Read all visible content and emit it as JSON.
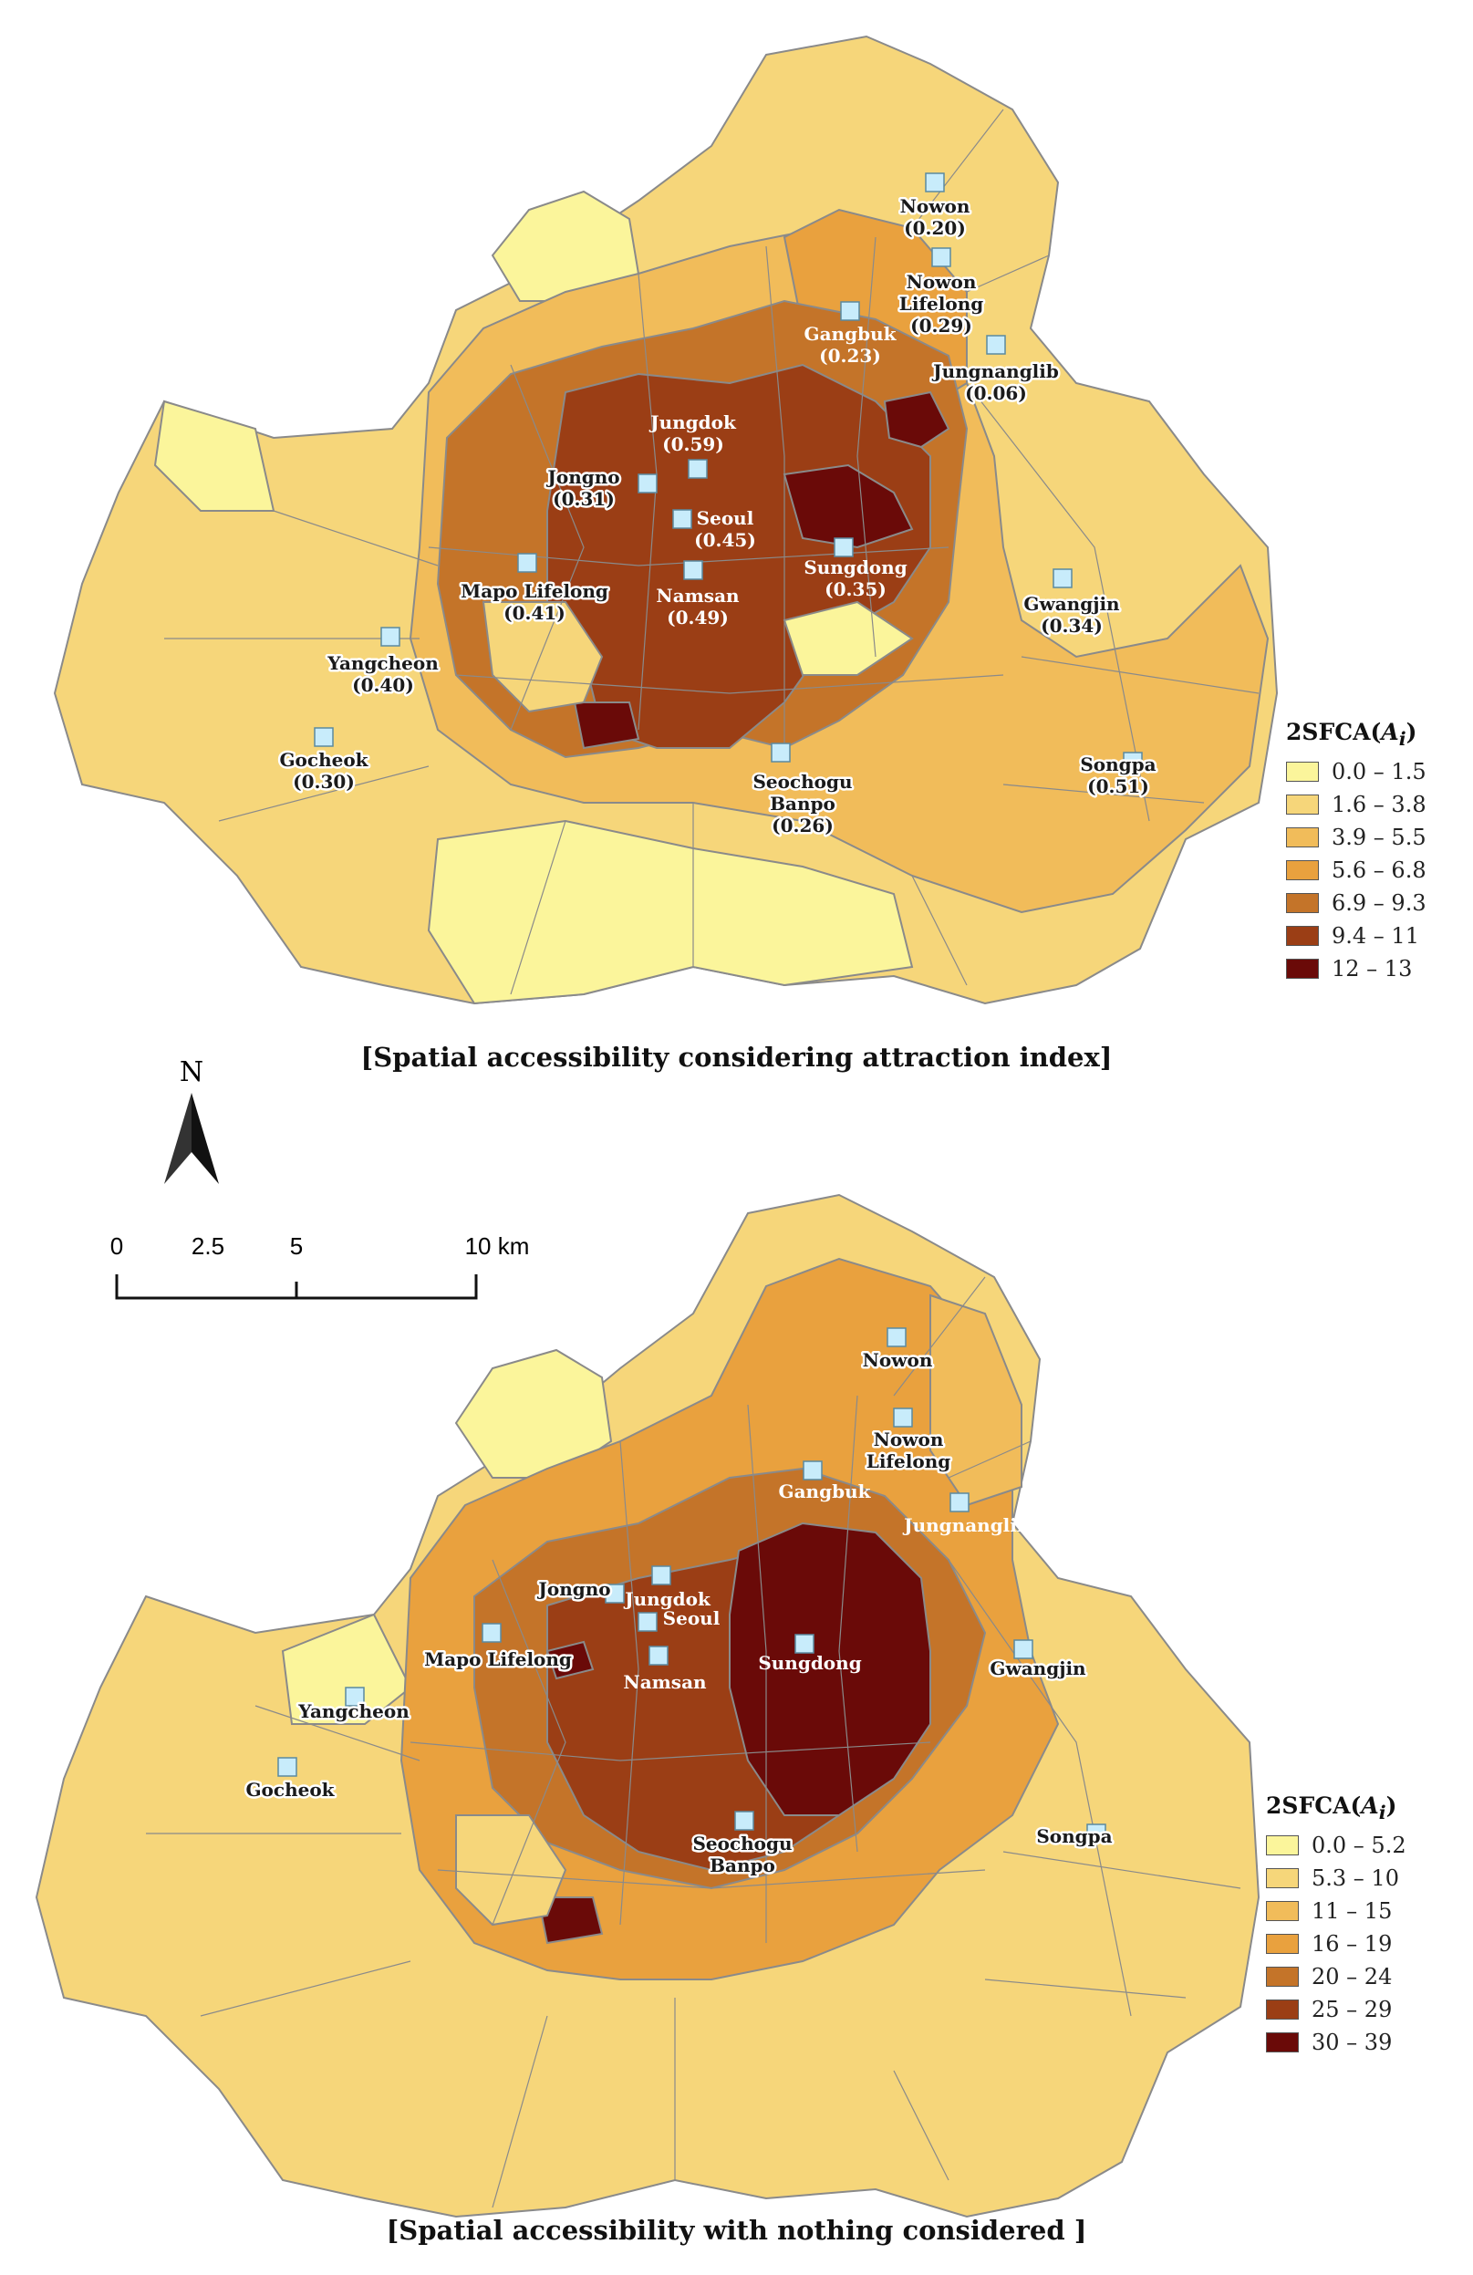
{
  "panel1": {
    "caption": "[Spatial accessibility considering attraction index]",
    "legend": {
      "title_prefix": "2SFCA(",
      "title_var": "A",
      "title_sub": "i",
      "title_suffix": ")",
      "classes": [
        {
          "label": "0.0 – 1.5",
          "color": "#fbf59b"
        },
        {
          "label": "1.6 – 3.8",
          "color": "#f6d67a"
        },
        {
          "label": "3.9 – 5.5",
          "color": "#f1bc5a"
        },
        {
          "label": "5.6 – 6.8",
          "color": "#e9a13e"
        },
        {
          "label": "6.9 – 9.3",
          "color": "#c47429"
        },
        {
          "label": "9.4 – 11",
          "color": "#9b3e15"
        },
        {
          "label": "12 – 13",
          "color": "#6a0a08"
        }
      ]
    },
    "libraries": [
      {
        "name": "Nowon",
        "value": "(0.20)",
        "label_class": "dark"
      },
      {
        "name": "Nowon Lifelong",
        "value": "(0.29)",
        "label_class": "dark"
      },
      {
        "name": "Gangbuk",
        "value": "(0.23)",
        "label_class": "light"
      },
      {
        "name": "Jungnanglib",
        "value": "(0.06)",
        "label_class": "dark"
      },
      {
        "name": "Jungdok",
        "value": "(0.59)",
        "label_class": "light"
      },
      {
        "name": "Jongno",
        "value": "(0.31)",
        "label_class": "dark"
      },
      {
        "name": "Seoul",
        "value": "(0.45)",
        "label_class": "light"
      },
      {
        "name": "Sungdong",
        "value": "(0.35)",
        "label_class": "light"
      },
      {
        "name": "Namsan",
        "value": "(0.49)",
        "label_class": "light"
      },
      {
        "name": "Mapo Lifelong",
        "value": "(0.41)",
        "label_class": "dark"
      },
      {
        "name": "Gwangjin",
        "value": "(0.34)",
        "label_class": "dark"
      },
      {
        "name": "Yangcheon",
        "value": "(0.40)",
        "label_class": "dark"
      },
      {
        "name": "Gocheok",
        "value": "(0.30)",
        "label_class": "dark"
      },
      {
        "name": "Seochogu Banpo",
        "value": "(0.26)",
        "label_class": "dark"
      },
      {
        "name": "Songpa",
        "value": "(0.51)",
        "label_class": "dark"
      }
    ]
  },
  "panel2": {
    "caption": "[Spatial accessibility with nothing considered ]",
    "legend": {
      "title_prefix": "2SFCA(",
      "title_var": "A",
      "title_sub": "i",
      "title_suffix": ")",
      "classes": [
        {
          "label": "0.0 – 5.2",
          "color": "#fbf59b"
        },
        {
          "label": "5.3 – 10",
          "color": "#f6d67a"
        },
        {
          "label": "11 – 15",
          "color": "#f1bc5a"
        },
        {
          "label": "16 – 19",
          "color": "#e9a13e"
        },
        {
          "label": "20 – 24",
          "color": "#c47429"
        },
        {
          "label": "25 – 29",
          "color": "#9b3e15"
        },
        {
          "label": "30 – 39",
          "color": "#6a0a08"
        }
      ]
    },
    "libraries": [
      {
        "name": "Nowon",
        "label_class": "dark"
      },
      {
        "name": "Nowon Lifelong",
        "label_class": "dark"
      },
      {
        "name": "Gangbuk",
        "label_class": "light"
      },
      {
        "name": "Jungnanglib",
        "label_class": "light"
      },
      {
        "name": "Jungdok",
        "label_class": "light"
      },
      {
        "name": "Jongno",
        "label_class": "dark"
      },
      {
        "name": "Seoul",
        "label_class": "light"
      },
      {
        "name": "Sungdong",
        "label_class": "light"
      },
      {
        "name": "Namsan",
        "label_class": "light"
      },
      {
        "name": "Mapo Lifelong",
        "label_class": "dark"
      },
      {
        "name": "Gwangjin",
        "label_class": "dark"
      },
      {
        "name": "Yangcheon",
        "label_class": "dark"
      },
      {
        "name": "Gocheok",
        "label_class": "dark"
      },
      {
        "name": "Seochogu Banpo",
        "label_class": "dark"
      },
      {
        "name": "Songpa",
        "label_class": "dark"
      }
    ]
  },
  "north_arrow": {
    "label": "N"
  },
  "scale_bar": {
    "ticks": [
      "0",
      "2.5",
      "5",
      "10 km"
    ]
  },
  "colors": {
    "border": "#8a8a8a",
    "library_marker_fill": "#c8ecfb",
    "library_marker_stroke": "#5a8aa0"
  }
}
